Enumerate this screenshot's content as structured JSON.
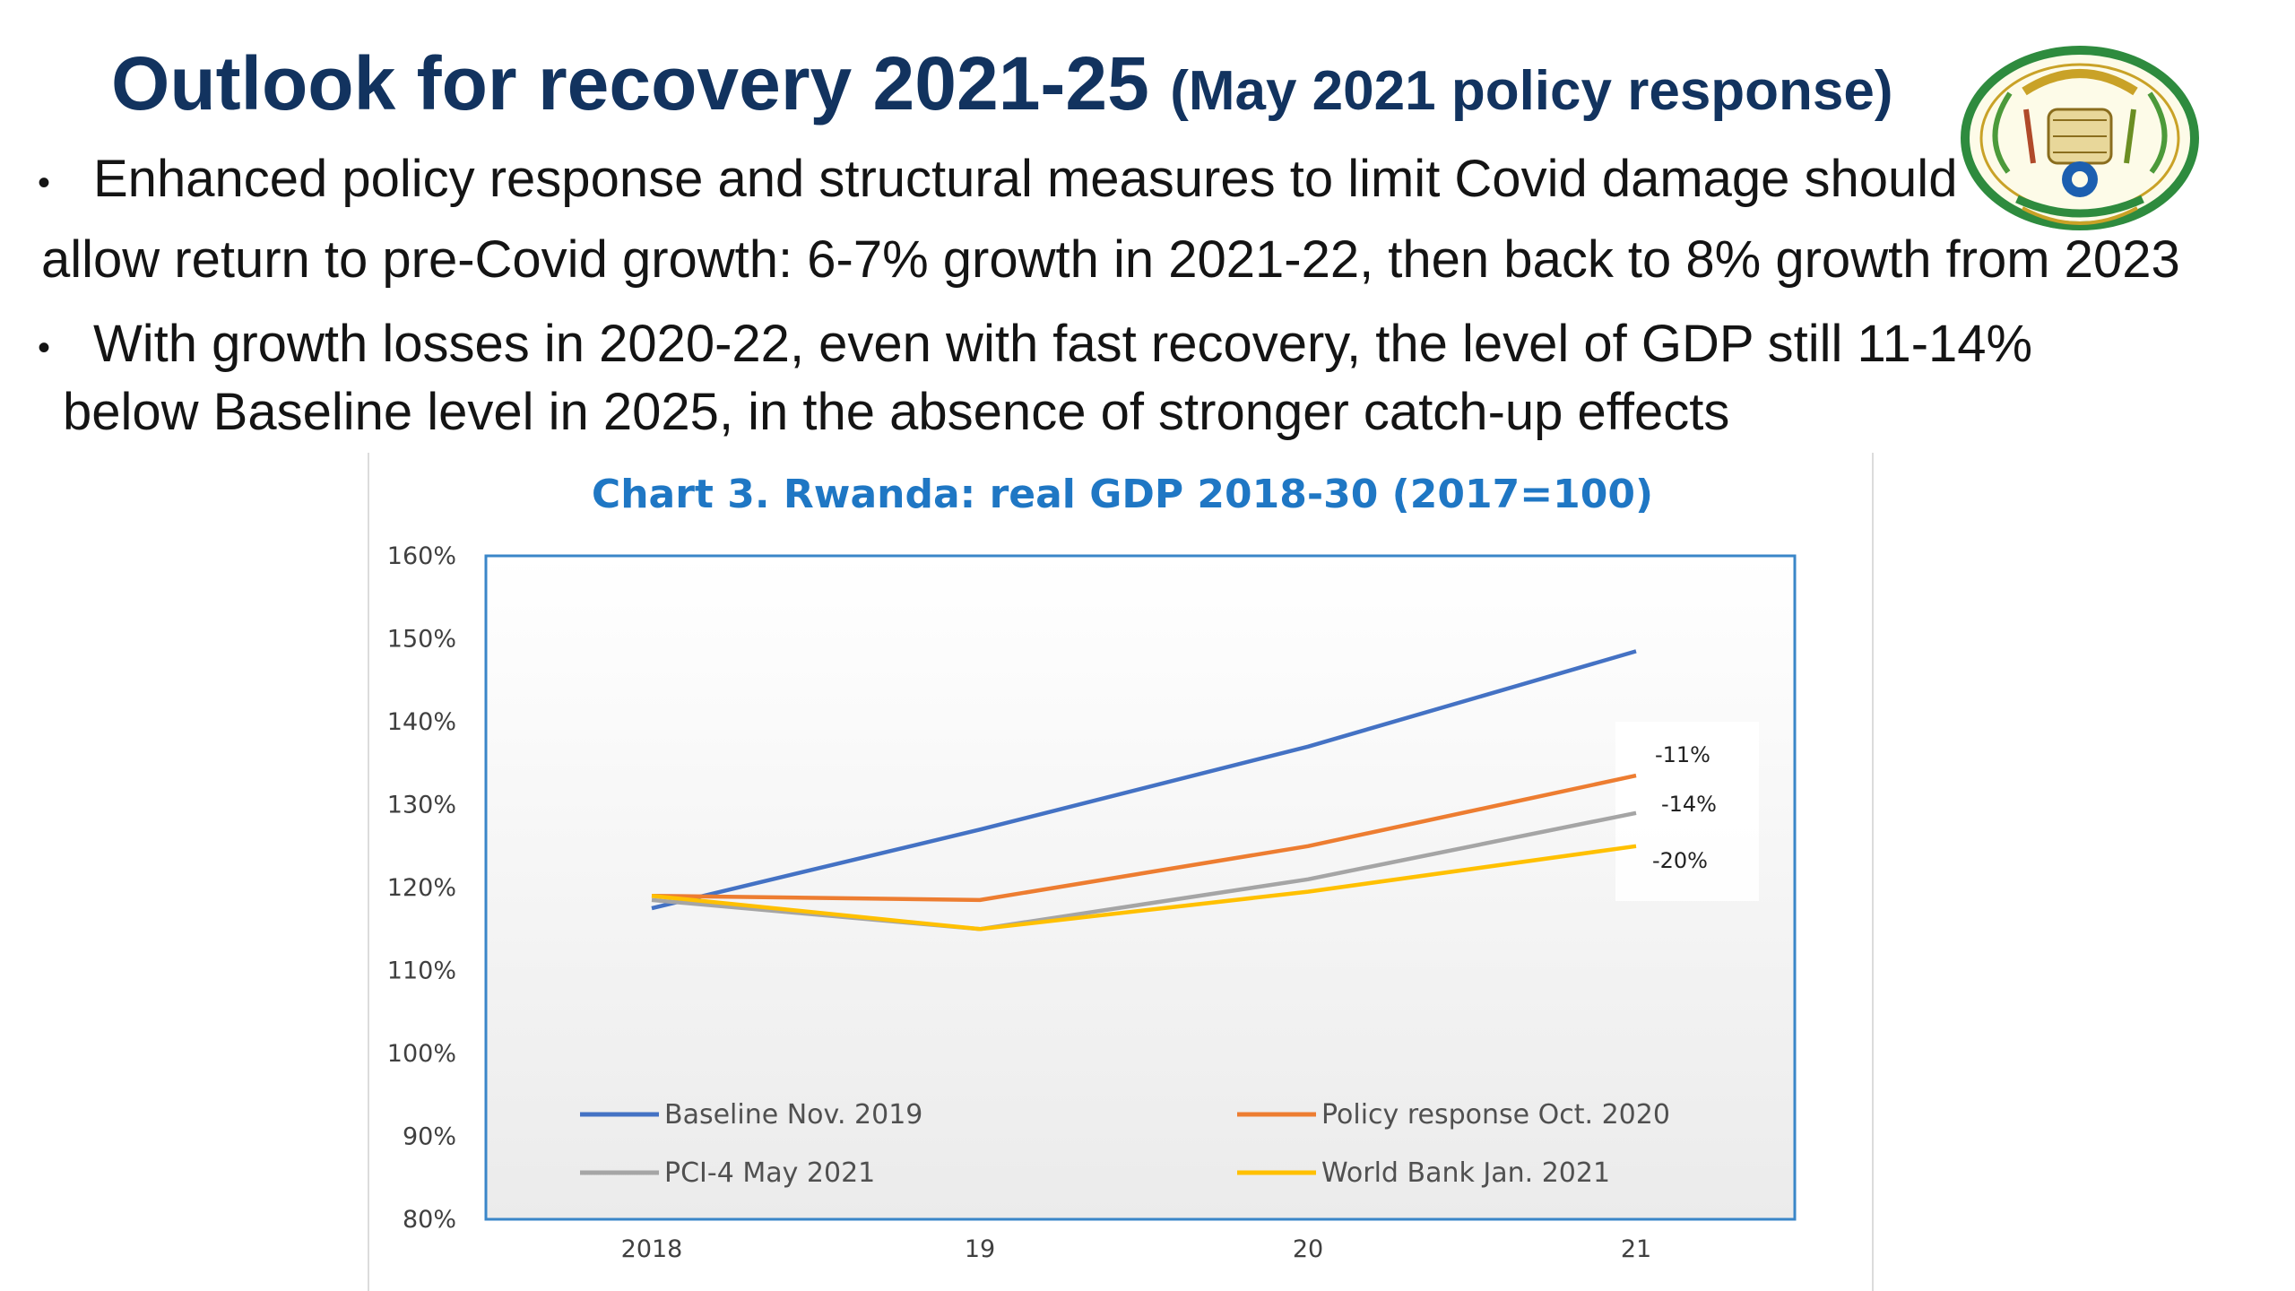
{
  "slide": {
    "title_main": "Outlook for recovery 2021-25",
    "title_sub": "(May 2021 policy response)",
    "bullets": [
      {
        "line1": "Enhanced policy response and structural measures to limit Covid damage should",
        "line2": "allow return to pre-Covid growth: 6-7% growth in 2021-22, then back to 8% growth from 2023"
      },
      {
        "line1": "With growth losses in 2020-22, even with fast recovery, the level of GDP still 11-14%",
        "line2": "below Baseline level in 2025, in the absence of stronger catch-up effects"
      }
    ],
    "bullet_glyph": "•"
  },
  "emblem": {
    "ring_color": "#2e8b3e",
    "gold_color": "#c9a227",
    "blue_color": "#1c5fb0",
    "icon": "rwanda-coat-of-arms-icon"
  },
  "chart_data": {
    "type": "line",
    "title": "Chart 3. Rwanda: real GDP 2018-30 (2017=100)",
    "categories": [
      "2018",
      "19",
      "20",
      "21"
    ],
    "y_ticks": [
      "160%",
      "150%",
      "140%",
      "130%",
      "120%",
      "110%",
      "100%",
      "90%",
      "80%"
    ],
    "ylim": [
      80,
      160
    ],
    "series": [
      {
        "name": "Baseline Nov. 2019",
        "color": "#4472c4",
        "values": [
          117.5,
          127,
          137,
          148.5
        ]
      },
      {
        "name": "Policy response Oct. 2020",
        "color": "#ed7d31",
        "values": [
          119,
          118.5,
          125,
          133.5
        ]
      },
      {
        "name": "PCI-4 May 2021",
        "color": "#a5a5a5",
        "values": [
          118.5,
          115,
          121,
          129
        ]
      },
      {
        "name": "World Bank Jan. 2021",
        "color": "#ffc000",
        "values": [
          119,
          115,
          119.5,
          125
        ]
      }
    ],
    "annotations": [
      "-11%",
      "-14%",
      "-20%"
    ],
    "grid": false,
    "legend_position": "bottom-inside"
  }
}
